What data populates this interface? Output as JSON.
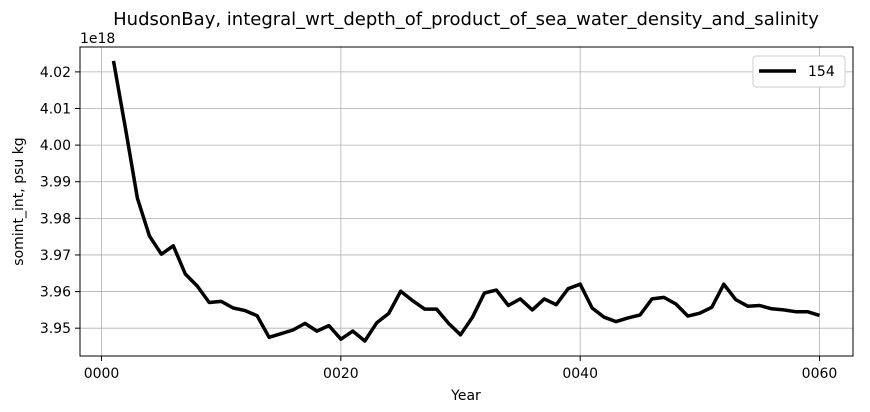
{
  "chart_data": {
    "type": "line",
    "title": "HudsonBay, integral_wrt_depth_of_product_of_sea_water_density_and_salinity",
    "xlabel": "Year",
    "ylabel": "somint_int, psu kg",
    "y_offset_label": "1e18",
    "y_scale": 1e+18,
    "xlim": [
      -1.8,
      62.8
    ],
    "ylim": [
      3.9424,
      4.0268
    ],
    "x_ticks": [
      0,
      20,
      40,
      60
    ],
    "x_tick_labels": [
      "0000",
      "0020",
      "0040",
      "0060"
    ],
    "y_ticks": [
      3.95,
      3.96,
      3.97,
      3.98,
      3.99,
      4.0,
      4.01,
      4.02
    ],
    "y_tick_labels": [
      "3.95",
      "3.96",
      "3.97",
      "3.98",
      "3.99",
      "4.00",
      "4.01",
      "4.02"
    ],
    "grid": true,
    "legend_position": "top-right",
    "series": [
      {
        "name": "154",
        "color": "#000000",
        "x": [
          1,
          2,
          3,
          4,
          5,
          6,
          7,
          8,
          9,
          10,
          11,
          12,
          13,
          14,
          15,
          16,
          17,
          18,
          19,
          20,
          21,
          22,
          23,
          24,
          25,
          26,
          27,
          28,
          29,
          30,
          31,
          32,
          33,
          34,
          35,
          36,
          37,
          38,
          39,
          40,
          41,
          42,
          43,
          44,
          45,
          46,
          47,
          48,
          49,
          50,
          51,
          52,
          53,
          54,
          55,
          56,
          57,
          58,
          59,
          60
        ],
        "values": [
          4.023,
          4.0045,
          3.9855,
          3.9752,
          3.9702,
          3.9725,
          3.9648,
          3.9615,
          3.957,
          3.9573,
          3.9555,
          3.9548,
          3.9534,
          3.9475,
          3.9485,
          3.9495,
          3.9513,
          3.9492,
          3.9507,
          3.947,
          3.9492,
          3.9465,
          3.9515,
          3.954,
          3.9601,
          3.9575,
          3.9552,
          3.9552,
          3.9513,
          3.9482,
          3.953,
          3.9596,
          3.9604,
          3.9562,
          3.958,
          3.955,
          3.958,
          3.9564,
          3.9608,
          3.962,
          3.9555,
          3.953,
          3.9518,
          3.9528,
          3.9536,
          3.958,
          3.9584,
          3.9566,
          3.9533,
          3.9541,
          3.9557,
          3.962,
          3.9578,
          3.956,
          3.9562,
          3.9553,
          3.955,
          3.9545,
          3.9545,
          3.9535
        ]
      }
    ]
  }
}
